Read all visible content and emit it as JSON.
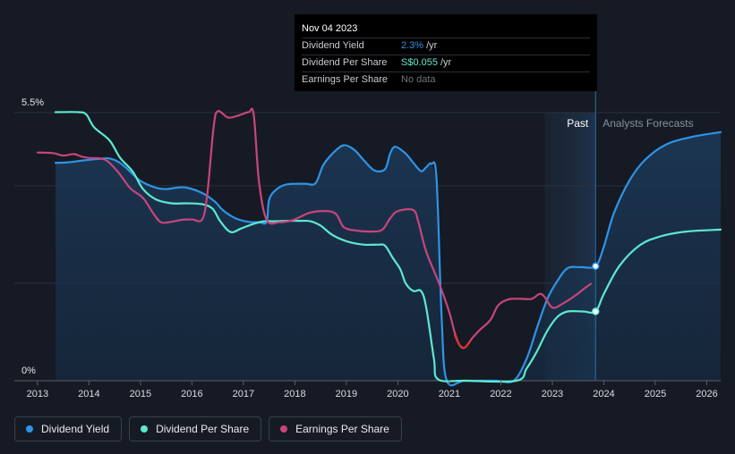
{
  "chart_data": {
    "type": "line",
    "title": "",
    "xlabel": "",
    "ylabel": "",
    "y_axis_labels": [
      "5.5%",
      "0%"
    ],
    "x_ticks": [
      "2013",
      "2014",
      "2015",
      "2016",
      "2017",
      "2018",
      "2019",
      "2020",
      "2021",
      "2022",
      "2023",
      "2024",
      "2025",
      "2026"
    ],
    "xlim": [
      2012.55,
      2026.27
    ],
    "ylim": [
      0,
      5.5
    ],
    "regions": {
      "past_label": "Past",
      "forecast_label": "Analysts Forecasts",
      "past_start": 2022.85,
      "forecast_start": 2023.84
    },
    "series": [
      {
        "name": "Dividend Yield",
        "color": "#2e94e6",
        "unit": "%",
        "points": [
          [
            2013.35,
            4.47
          ],
          [
            2013.6,
            4.48
          ],
          [
            2013.9,
            4.52
          ],
          [
            2014.2,
            4.55
          ],
          [
            2014.4,
            4.56
          ],
          [
            2014.6,
            4.47
          ],
          [
            2014.8,
            4.29
          ],
          [
            2015.0,
            4.1
          ],
          [
            2015.3,
            3.96
          ],
          [
            2015.5,
            3.93
          ],
          [
            2015.7,
            3.96
          ],
          [
            2015.9,
            3.96
          ],
          [
            2016.2,
            3.85
          ],
          [
            2016.45,
            3.67
          ],
          [
            2016.6,
            3.5
          ],
          [
            2016.85,
            3.33
          ],
          [
            2017.1,
            3.26
          ],
          [
            2017.3,
            3.25
          ],
          [
            2017.45,
            3.26
          ],
          [
            2017.5,
            3.72
          ],
          [
            2017.65,
            3.93
          ],
          [
            2017.85,
            4.03
          ],
          [
            2018.2,
            4.04
          ],
          [
            2018.4,
            4.05
          ],
          [
            2018.55,
            4.42
          ],
          [
            2018.75,
            4.68
          ],
          [
            2018.95,
            4.83
          ],
          [
            2019.15,
            4.74
          ],
          [
            2019.35,
            4.51
          ],
          [
            2019.55,
            4.31
          ],
          [
            2019.75,
            4.34
          ],
          [
            2019.85,
            4.66
          ],
          [
            2019.95,
            4.8
          ],
          [
            2020.15,
            4.66
          ],
          [
            2020.3,
            4.47
          ],
          [
            2020.45,
            4.3
          ],
          [
            2020.55,
            4.38
          ],
          [
            2020.65,
            4.45
          ],
          [
            2020.75,
            4.15
          ],
          [
            2020.85,
            1.3
          ],
          [
            2020.95,
            0
          ],
          [
            2021.3,
            0
          ],
          [
            2021.9,
            0
          ],
          [
            2022.25,
            0
          ],
          [
            2022.5,
            0.45
          ],
          [
            2022.7,
            1.08
          ],
          [
            2022.9,
            1.67
          ],
          [
            2023.1,
            2.05
          ],
          [
            2023.3,
            2.31
          ],
          [
            2023.55,
            2.33
          ],
          [
            2023.84,
            2.35
          ],
          [
            2024.0,
            2.75
          ],
          [
            2024.2,
            3.45
          ],
          [
            2024.5,
            4.11
          ],
          [
            2024.8,
            4.53
          ],
          [
            2025.2,
            4.84
          ],
          [
            2025.7,
            5.0
          ],
          [
            2026.27,
            5.1
          ]
        ]
      },
      {
        "name": "Dividend Per Share",
        "color": "#5ee8d0",
        "unit": "S$",
        "points": [
          [
            2013.35,
            5.51
          ],
          [
            2013.8,
            5.51
          ],
          [
            2013.95,
            5.46
          ],
          [
            2014.1,
            5.2
          ],
          [
            2014.4,
            4.93
          ],
          [
            2014.6,
            4.58
          ],
          [
            2014.85,
            4.29
          ],
          [
            2015.05,
            3.93
          ],
          [
            2015.3,
            3.72
          ],
          [
            2015.6,
            3.64
          ],
          [
            2015.9,
            3.64
          ],
          [
            2016.2,
            3.62
          ],
          [
            2016.4,
            3.53
          ],
          [
            2016.55,
            3.27
          ],
          [
            2016.75,
            3.05
          ],
          [
            2016.95,
            3.12
          ],
          [
            2017.2,
            3.22
          ],
          [
            2017.4,
            3.27
          ],
          [
            2017.6,
            3.27
          ],
          [
            2017.85,
            3.28
          ],
          [
            2018.1,
            3.28
          ],
          [
            2018.3,
            3.27
          ],
          [
            2018.5,
            3.18
          ],
          [
            2018.7,
            3.01
          ],
          [
            2018.9,
            2.9
          ],
          [
            2019.1,
            2.83
          ],
          [
            2019.35,
            2.79
          ],
          [
            2019.6,
            2.79
          ],
          [
            2019.75,
            2.77
          ],
          [
            2019.9,
            2.52
          ],
          [
            2020.05,
            2.28
          ],
          [
            2020.15,
            2.0
          ],
          [
            2020.3,
            1.84
          ],
          [
            2020.45,
            1.84
          ],
          [
            2020.55,
            1.5
          ],
          [
            2020.7,
            0.45
          ],
          [
            2020.78,
            0.03
          ],
          [
            2021.3,
            0
          ],
          [
            2022.3,
            0
          ],
          [
            2022.5,
            0.25
          ],
          [
            2022.7,
            0.6
          ],
          [
            2022.9,
            1.02
          ],
          [
            2023.1,
            1.31
          ],
          [
            2023.3,
            1.42
          ],
          [
            2023.6,
            1.42
          ],
          [
            2023.84,
            1.42
          ],
          [
            2024.0,
            1.78
          ],
          [
            2024.3,
            2.35
          ],
          [
            2024.7,
            2.78
          ],
          [
            2025.1,
            2.96
          ],
          [
            2025.6,
            3.06
          ],
          [
            2026.27,
            3.1
          ]
        ]
      },
      {
        "name": "Earnings Per Share",
        "color": "#c8457a",
        "unit": "S$",
        "points": [
          [
            2013.0,
            4.68
          ],
          [
            2013.3,
            4.67
          ],
          [
            2013.5,
            4.62
          ],
          [
            2013.7,
            4.65
          ],
          [
            2013.85,
            4.6
          ],
          [
            2014.0,
            4.57
          ],
          [
            2014.3,
            4.54
          ],
          [
            2014.55,
            4.3
          ],
          [
            2014.8,
            3.95
          ],
          [
            2015.05,
            3.75
          ],
          [
            2015.25,
            3.43
          ],
          [
            2015.4,
            3.25
          ],
          [
            2015.6,
            3.26
          ],
          [
            2015.8,
            3.3
          ],
          [
            2016.0,
            3.31
          ],
          [
            2016.2,
            3.31
          ],
          [
            2016.3,
            3.85
          ],
          [
            2016.42,
            5.2
          ],
          [
            2016.5,
            5.53
          ],
          [
            2016.7,
            5.4
          ],
          [
            2016.9,
            5.44
          ],
          [
            2017.1,
            5.51
          ],
          [
            2017.2,
            5.46
          ],
          [
            2017.3,
            4.1
          ],
          [
            2017.45,
            3.3
          ],
          [
            2017.7,
            3.25
          ],
          [
            2017.95,
            3.29
          ],
          [
            2018.1,
            3.36
          ],
          [
            2018.3,
            3.45
          ],
          [
            2018.6,
            3.48
          ],
          [
            2018.8,
            3.42
          ],
          [
            2018.95,
            3.15
          ],
          [
            2019.2,
            3.08
          ],
          [
            2019.5,
            3.06
          ],
          [
            2019.7,
            3.1
          ],
          [
            2019.85,
            3.33
          ],
          [
            2020.0,
            3.48
          ],
          [
            2020.3,
            3.5
          ],
          [
            2020.4,
            3.25
          ],
          [
            2020.55,
            2.65
          ],
          [
            2020.8,
            2.0
          ],
          [
            2021.0,
            1.4
          ],
          [
            2021.1,
            1.0
          ],
          [
            2021.2,
            0.73
          ],
          [
            2021.3,
            0.68
          ],
          [
            2021.45,
            0.88
          ],
          [
            2021.6,
            1.05
          ],
          [
            2021.8,
            1.25
          ],
          [
            2021.95,
            1.55
          ],
          [
            2022.15,
            1.67
          ],
          [
            2022.4,
            1.68
          ],
          [
            2022.6,
            1.68
          ],
          [
            2022.75,
            1.78
          ],
          [
            2022.85,
            1.72
          ],
          [
            2023.0,
            1.5
          ],
          [
            2023.2,
            1.58
          ],
          [
            2023.45,
            1.75
          ],
          [
            2023.62,
            1.89
          ],
          [
            2023.75,
            1.99
          ]
        ],
        "negative_color": "#e0342b",
        "negative_points": [
          [
            2021.1,
            0.95
          ],
          [
            2021.2,
            0.73
          ],
          [
            2021.3,
            0.68
          ],
          [
            2021.4,
            0.8
          ]
        ]
      }
    ]
  },
  "tooltip": {
    "date": "Nov 04 2023",
    "rows": [
      {
        "label": "Dividend Yield",
        "value": "2.3%",
        "unit": "/yr",
        "color": "#2e94e6"
      },
      {
        "label": "Dividend Per Share",
        "value": "S$0.055",
        "unit": "/yr",
        "color": "#5ee8d0"
      },
      {
        "label": "Earnings Per Share",
        "value": "No data",
        "unit": "",
        "color": "#6f747c"
      }
    ]
  },
  "legend": [
    {
      "label": "Dividend Yield",
      "color": "#2e94e6"
    },
    {
      "label": "Dividend Per Share",
      "color": "#5ee8d0"
    },
    {
      "label": "Earnings Per Share",
      "color": "#c8457a"
    }
  ]
}
